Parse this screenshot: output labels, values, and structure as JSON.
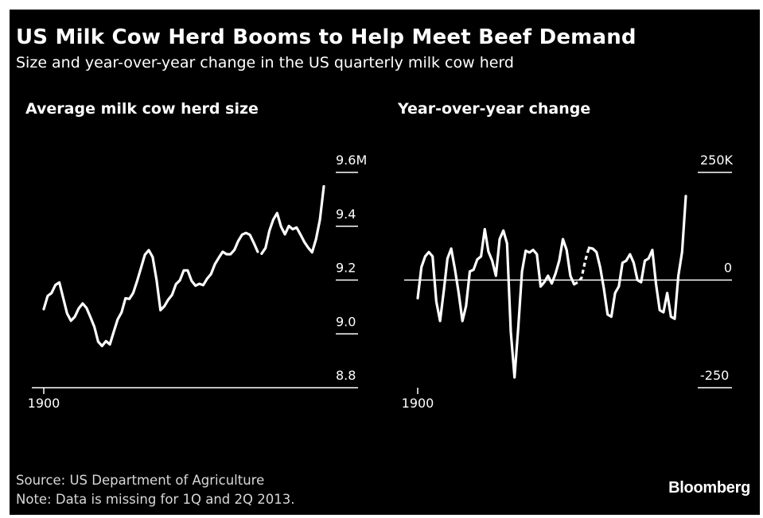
{
  "title": "US Milk Cow Herd Booms to Help Meet Beef Demand",
  "subtitle": "Size and year-over-year change in the US quarterly milk cow herd",
  "source": "Source: US Department of Agriculture",
  "note": "Note: Data is missing for 1Q and 2Q 2013.",
  "brand": "Bloomberg",
  "colors": {
    "background": "#000000",
    "line": "#ffffff",
    "text": "#ffffff"
  },
  "chart_data": [
    {
      "type": "line",
      "title": "Average milk cow herd size",
      "ylim": [
        8.8,
        9.6
      ],
      "y_ticks": [
        {
          "value": 9.6,
          "label": "9.6M"
        },
        {
          "value": 9.4,
          "label": "9.4"
        },
        {
          "value": 9.2,
          "label": "9.2"
        },
        {
          "value": 9.0,
          "label": "9.0"
        },
        {
          "value": 8.8,
          "label": "8.8"
        }
      ],
      "x_ticks": [
        {
          "index": 0,
          "label": "1900"
        }
      ],
      "gap_after_index": 55,
      "values": [
        9.092,
        9.141,
        9.152,
        9.182,
        9.191,
        9.134,
        9.076,
        9.049,
        9.064,
        9.095,
        9.113,
        9.096,
        9.062,
        9.026,
        8.971,
        8.955,
        8.973,
        8.961,
        9.008,
        9.054,
        9.08,
        9.132,
        9.13,
        9.152,
        9.196,
        9.245,
        9.294,
        9.311,
        9.285,
        9.2,
        9.088,
        9.103,
        9.127,
        9.145,
        9.185,
        9.199,
        9.236,
        9.236,
        9.197,
        9.179,
        9.186,
        9.181,
        9.205,
        9.222,
        9.259,
        9.283,
        9.305,
        9.296,
        9.296,
        9.312,
        9.345,
        9.369,
        9.375,
        9.368,
        9.338,
        9.305,
        9.298,
        9.319,
        9.383,
        9.424,
        9.449,
        9.399,
        9.37,
        9.401,
        9.389,
        9.395,
        9.369,
        9.341,
        9.32,
        9.303,
        9.352,
        9.424,
        9.548
      ]
    },
    {
      "type": "line",
      "title": "Year-over-year change",
      "ylim": [
        -250,
        250
      ],
      "y_ticks": [
        {
          "value": 250,
          "label": "250K"
        },
        {
          "value": 0,
          "label": "0"
        },
        {
          "value": -250,
          "label": "-250"
        }
      ],
      "x_ticks": [
        {
          "index": 0,
          "label": "1900"
        }
      ],
      "dashed_range": [
        42,
        46
      ],
      "values": [
        -42,
        30,
        55,
        65,
        55,
        -50,
        -95,
        -25,
        50,
        73,
        25,
        -30,
        -95,
        -60,
        20,
        24,
        48,
        55,
        118,
        66,
        45,
        10,
        95,
        115,
        85,
        -120,
        -226,
        -110,
        20,
        68,
        64,
        70,
        60,
        -15,
        -5,
        10,
        -8,
        15,
        45,
        95,
        70,
        10,
        -10,
        -5,
        5,
        45,
        75,
        73,
        65,
        30,
        -20,
        -80,
        -85,
        -30,
        -15,
        40,
        45,
        60,
        40,
        0,
        -5,
        45,
        50,
        70,
        -10,
        -70,
        -75,
        -30,
        -85,
        -90,
        10,
        65,
        195
      ]
    }
  ]
}
